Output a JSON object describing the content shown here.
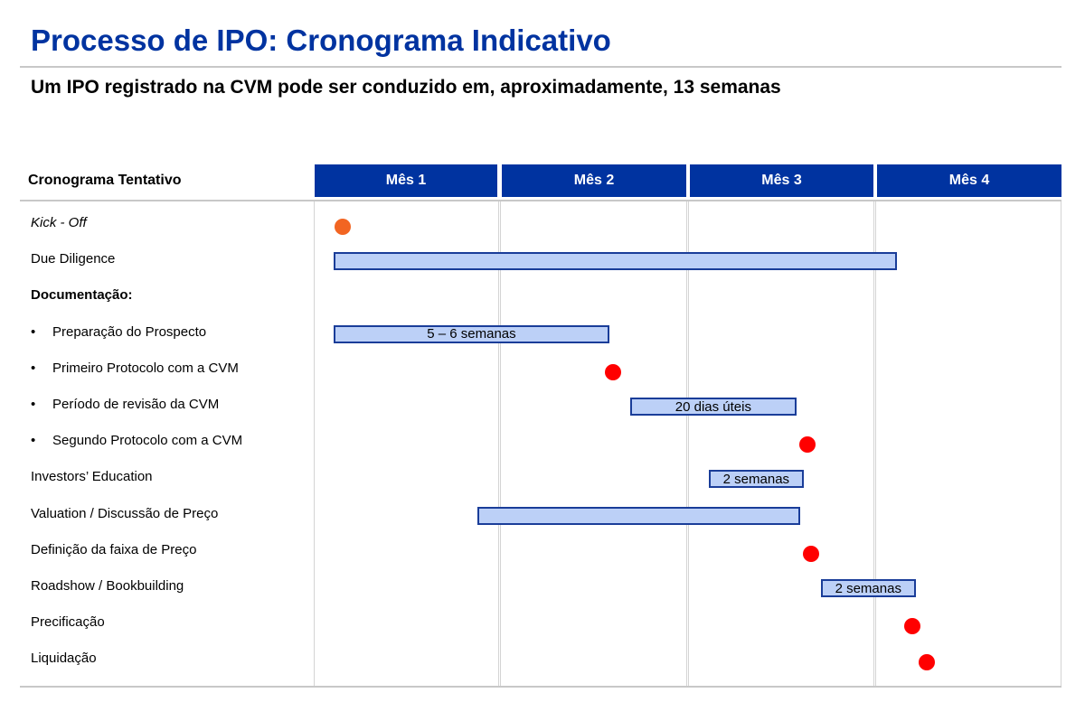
{
  "header": {
    "title": "Processo de IPO: Cronograma Indicativo",
    "subtitle": "Um IPO registrado na CVM pode ser conduzido em, aproximadamente, 13 semanas"
  },
  "table": {
    "schedule_label": "Cronograma Tentativo",
    "months": [
      "Mês 1",
      "Mês 2",
      "Mês 3",
      "Mês 4"
    ]
  },
  "rows": [
    {
      "label": "Kick - Off",
      "style": "italic"
    },
    {
      "label": "Due Diligence"
    },
    {
      "label": "Documentação:",
      "style": "bold"
    },
    {
      "label": "Preparação do Prospecto",
      "bullet": "•"
    },
    {
      "label": "Primeiro Protocolo com a CVM",
      "bullet": "•"
    },
    {
      "label": "Período de revisão da CVM",
      "bullet": "•"
    },
    {
      "label": "Segundo Protocolo com a CVM",
      "bullet": "•"
    },
    {
      "label": "Investors’ Education"
    },
    {
      "label": "Valuation / Discussão de Preço"
    },
    {
      "label": "Definição da faixa de Preço"
    },
    {
      "label": "Roadshow / Bookbuilding"
    },
    {
      "label": "Precificação"
    },
    {
      "label": "Liquidação"
    }
  ],
  "bars": [
    {
      "row": 1,
      "start_month": 0.1,
      "end_month": 3.12,
      "label": ""
    },
    {
      "row": 3,
      "start_month": 0.1,
      "end_month": 1.58,
      "label": "5 – 6 semanas"
    },
    {
      "row": 5,
      "start_month": 1.69,
      "end_month": 2.58,
      "label": "20 dias úteis"
    },
    {
      "row": 7,
      "start_month": 2.11,
      "end_month": 2.62,
      "label": "2 semanas"
    },
    {
      "row": 8,
      "start_month": 0.87,
      "end_month": 2.6,
      "label": ""
    },
    {
      "row": 10,
      "start_month": 2.71,
      "end_month": 3.22,
      "label": "2 semanas"
    }
  ],
  "milestones": [
    {
      "row": 0,
      "month": 0.15,
      "color": "#f26522"
    },
    {
      "row": 4,
      "month": 1.6,
      "color": "#ff0000"
    },
    {
      "row": 6,
      "month": 2.64,
      "color": "#ff0000"
    },
    {
      "row": 9,
      "month": 2.66,
      "color": "#ff0000"
    },
    {
      "row": 11,
      "month": 3.2,
      "color": "#ff0000"
    },
    {
      "row": 12,
      "month": 3.28,
      "color": "#ff0000"
    }
  ],
  "colors": {
    "accent": "#0033a0",
    "bar_fill": "#bcd0f7",
    "bar_border": "#1a3d99"
  }
}
